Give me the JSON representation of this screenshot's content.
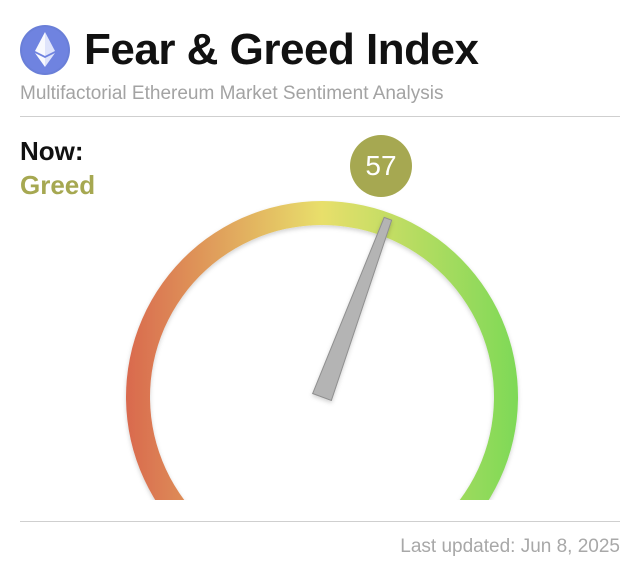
{
  "header": {
    "logo_icon": "ethereum-logo-icon",
    "title": "Fear & Greed Index",
    "subtitle": "Multifactorial Ethereum Market Sentiment Analysis"
  },
  "current": {
    "now_label": "Now:",
    "sentiment": "Greed",
    "value": "57",
    "value_number": 57,
    "scale_min": 0,
    "scale_max": 100,
    "color": "#a6a851"
  },
  "gauge_colors": {
    "fear": "#d9694e",
    "mid": "#e8df6b",
    "greed": "#7ed957",
    "needle": "#b4b4b4"
  },
  "footer": {
    "last_updated": "Last updated: Jun 8, 2025"
  }
}
